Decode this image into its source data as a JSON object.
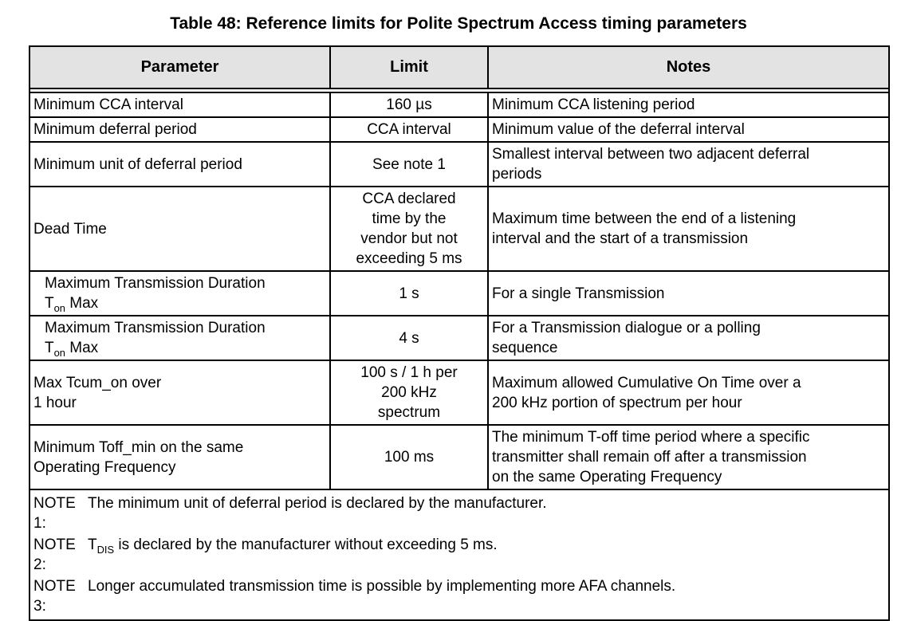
{
  "title": "Table 48: Reference limits for Polite Spectrum Access timing parameters",
  "colors": {
    "header_background": "#e3e3e3",
    "border": "#000000",
    "text": "#000000",
    "page_background": "#ffffff"
  },
  "table": {
    "headers": [
      "Parameter",
      "Limit",
      "Notes"
    ],
    "rows": [
      {
        "param": [
          {
            "t": "Minimum CCA interval"
          }
        ],
        "limit": [
          {
            "t": "160 µs"
          }
        ],
        "notes": [
          {
            "t": "Minimum CCA listening period"
          }
        ]
      },
      {
        "param": [
          {
            "t": "Minimum deferral period"
          }
        ],
        "limit": [
          {
            "t": "CCA interval"
          }
        ],
        "notes": [
          {
            "t": "Minimum value of the deferral interval"
          }
        ]
      },
      {
        "param": [
          {
            "t": "Minimum unit of deferral period"
          }
        ],
        "limit": [
          {
            "t": "See note 1"
          }
        ],
        "notes": [
          {
            "t": "Smallest interval between two adjacent deferral\nperiods"
          }
        ]
      },
      {
        "param": [
          {
            "t": "Dead Time"
          }
        ],
        "limit": [
          {
            "t": "CCA declared\ntime by the\nvendor but not\nexceeding 5 ms"
          }
        ],
        "notes": [
          {
            "t": "Maximum time between the end of a listening\ninterval and the start of a transmission"
          }
        ]
      },
      {
        "indent": true,
        "param": [
          {
            "t": "Maximum Transmission Duration\nT"
          },
          {
            "t": "on",
            "sub": true
          },
          {
            "t": " Max"
          }
        ],
        "limit": [
          {
            "t": "1 s"
          }
        ],
        "notes": [
          {
            "t": "For a single Transmission"
          }
        ]
      },
      {
        "indent": true,
        "param": [
          {
            "t": "Maximum Transmission Duration\nT"
          },
          {
            "t": "on",
            "sub": true
          },
          {
            "t": " Max"
          }
        ],
        "limit": [
          {
            "t": "4 s"
          }
        ],
        "notes": [
          {
            "t": "For a Transmission dialogue or a polling\nsequence"
          }
        ]
      },
      {
        "param": [
          {
            "t": "Max Tcum_on over\n1 hour"
          }
        ],
        "limit": [
          {
            "t": "100 s / 1 h per\n200 kHz\nspectrum"
          }
        ],
        "notes": [
          {
            "t": "Maximum allowed Cumulative On Time over a\n200 kHz portion of spectrum per hour"
          }
        ]
      },
      {
        "param": [
          {
            "t": "Minimum Toff_min on the same\nOperating Frequency"
          }
        ],
        "limit": [
          {
            "t": "100 ms"
          }
        ],
        "notes": [
          {
            "t": "The minimum T-off time period where a specific\ntransmitter shall remain off after a transmission\non the same Operating Frequency"
          }
        ]
      }
    ],
    "footnotes": [
      {
        "label": "NOTE 1:",
        "text": [
          {
            "t": "The minimum unit of deferral period is declared by the manufacturer."
          }
        ]
      },
      {
        "label": "NOTE 2:",
        "text": [
          {
            "t": "T"
          },
          {
            "t": "DIS",
            "sub": true
          },
          {
            "t": " is declared by the manufacturer without exceeding 5 ms."
          }
        ]
      },
      {
        "label": "NOTE 3:",
        "text": [
          {
            "t": "Longer accumulated transmission time is possible by implementing more AFA channels."
          }
        ]
      }
    ]
  }
}
